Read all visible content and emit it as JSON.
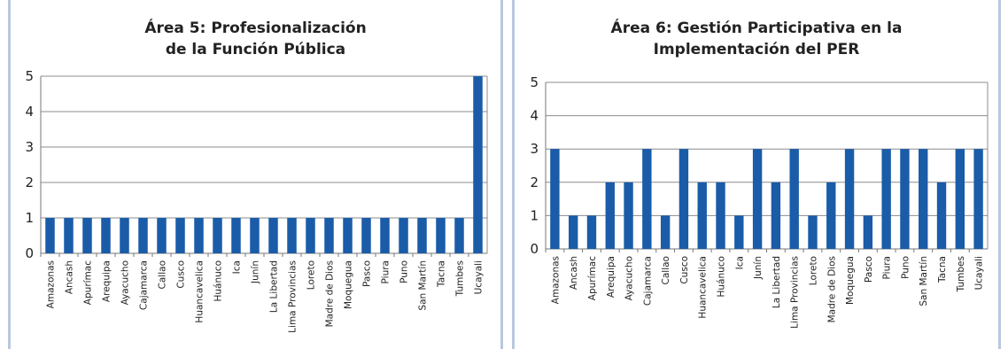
{
  "chart_data": [
    {
      "type": "bar",
      "title": "Área 5: Profesionalización de la Función Pública",
      "title_lines": [
        "Área 5: Profesionalización",
        "de la Función Pública"
      ],
      "categories": [
        "Amazonas",
        "Ancash",
        "Apurímac",
        "Arequipa",
        "Ayacucho",
        "Cajamarca",
        "Callao",
        "Cusco",
        "Huancavelica",
        "Huánuco",
        "Ica",
        "Junín",
        "La Libertad",
        "Lima Provincias",
        "Loreto",
        "Madre de Dios",
        "Moquegua",
        "Pasco",
        "Piura",
        "Puno",
        "San Martín",
        "Tacna",
        "Tumbes",
        "Ucayali"
      ],
      "values": [
        1,
        1,
        1,
        1,
        1,
        1,
        1,
        1,
        1,
        1,
        1,
        1,
        1,
        1,
        1,
        1,
        1,
        1,
        1,
        1,
        1,
        1,
        1,
        5
      ],
      "yticks": [
        "0",
        "1",
        "2",
        "3",
        "4",
        "5"
      ],
      "ylim": [
        0,
        5
      ],
      "xlabel": "",
      "ylabel": "",
      "grid": true,
      "bar_color": "#1a5ca8"
    },
    {
      "type": "bar",
      "title": "Área 6: Gestión Participativa en la Implementación del PER",
      "title_lines": [
        "Área 6: Gestión Participativa en la",
        "Implementación del PER"
      ],
      "categories": [
        "Amazonas",
        "Ancash",
        "Apurímac",
        "Arequipa",
        "Ayacucho",
        "Cajamarca",
        "Callao",
        "Cusco",
        "Huancavelica",
        "Huánuco",
        "Ica",
        "Junín",
        "La Libertad",
        "Lima Provincias",
        "Loreto",
        "Madre de Dios",
        "Moquegua",
        "Pasco",
        "Piura",
        "Puno",
        "San Martín",
        "Tacna",
        "Tumbes",
        "Ucayali"
      ],
      "values": [
        3,
        1,
        1,
        2,
        2,
        3,
        1,
        3,
        2,
        2,
        1,
        3,
        2,
        3,
        1,
        2,
        3,
        1,
        3,
        3,
        3,
        2,
        3,
        3
      ],
      "yticks": [
        "0",
        "1",
        "2",
        "3",
        "4",
        "5"
      ],
      "ylim": [
        0,
        5
      ],
      "xlabel": "",
      "ylabel": "",
      "grid": true,
      "bar_color": "#1a5ca8"
    }
  ]
}
